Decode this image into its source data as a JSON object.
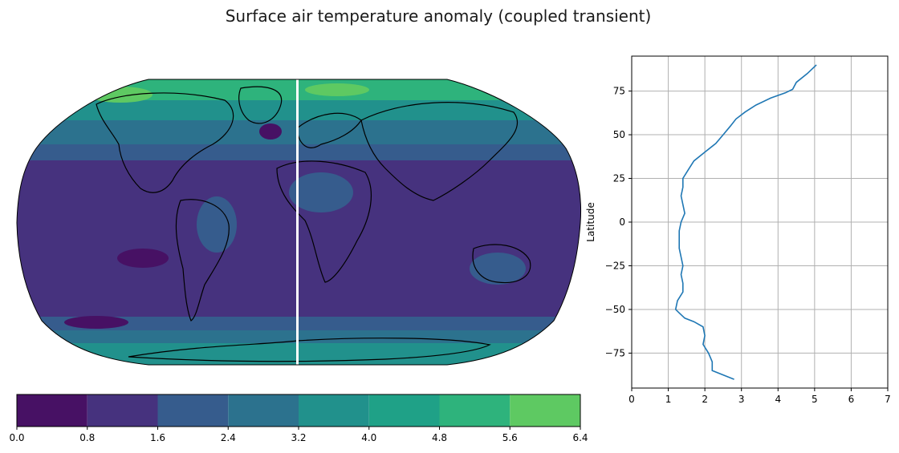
{
  "title": "Surface air temperature anomaly (coupled transient)",
  "colors": {
    "levels": [
      "#471164",
      "#46327e",
      "#365c8d",
      "#2c728e",
      "#21918c",
      "#1fa187",
      "#2eb37c",
      "#5ec962"
    ],
    "line": "#1f77b4",
    "grid": "#b0b0b0",
    "coast": "#000000"
  },
  "chart_data": [
    {
      "type": "heatmap",
      "projection": "robinson",
      "description_levels": [
        0.0,
        0.8,
        1.6,
        2.4,
        3.2,
        4.0,
        4.8,
        5.6,
        6.4
      ],
      "colorbar": {
        "orientation": "horizontal",
        "ticks": [
          0.0,
          0.8,
          1.6,
          2.4,
          3.2,
          4.0,
          4.8,
          5.6,
          6.4
        ],
        "tick_labels": [
          "0.0",
          "0.8",
          "1.6",
          "2.4",
          "3.2",
          "4.0",
          "4.8",
          "5.6",
          "6.4"
        ]
      }
    },
    {
      "type": "line",
      "xlabel": "",
      "ylabel": "Latitude",
      "xlim": [
        0,
        7
      ],
      "ylim": [
        -95,
        95
      ],
      "grid": true,
      "xticks": [
        0,
        1,
        2,
        3,
        4,
        5,
        6,
        7
      ],
      "yticks": [
        -75,
        -50,
        -25,
        0,
        25,
        50,
        75
      ],
      "series": [
        {
          "x": [
            2.8,
            2.2,
            2.2,
            2.1,
            1.95,
            2.0,
            1.95,
            1.7,
            1.45,
            1.3,
            1.2,
            1.25,
            1.4,
            1.4,
            1.35,
            1.4,
            1.35,
            1.3,
            1.3,
            1.3,
            1.35,
            1.45,
            1.4,
            1.35,
            1.4,
            1.4,
            1.55,
            1.7,
            2.0,
            2.3,
            2.5,
            2.7,
            2.85,
            3.1,
            3.4,
            3.8,
            4.2,
            4.4,
            4.5,
            4.8,
            5.05
          ],
          "y": [
            -90,
            -85,
            -80,
            -75,
            -70,
            -65,
            -60,
            -57,
            -55,
            -52,
            -50,
            -45,
            -40,
            -35,
            -30,
            -25,
            -20,
            -15,
            -10,
            -5,
            0,
            5,
            10,
            15,
            20,
            25,
            30,
            35,
            40,
            45,
            50,
            55,
            59,
            63,
            67,
            71,
            74,
            76,
            80,
            85,
            90
          ]
        }
      ]
    }
  ]
}
